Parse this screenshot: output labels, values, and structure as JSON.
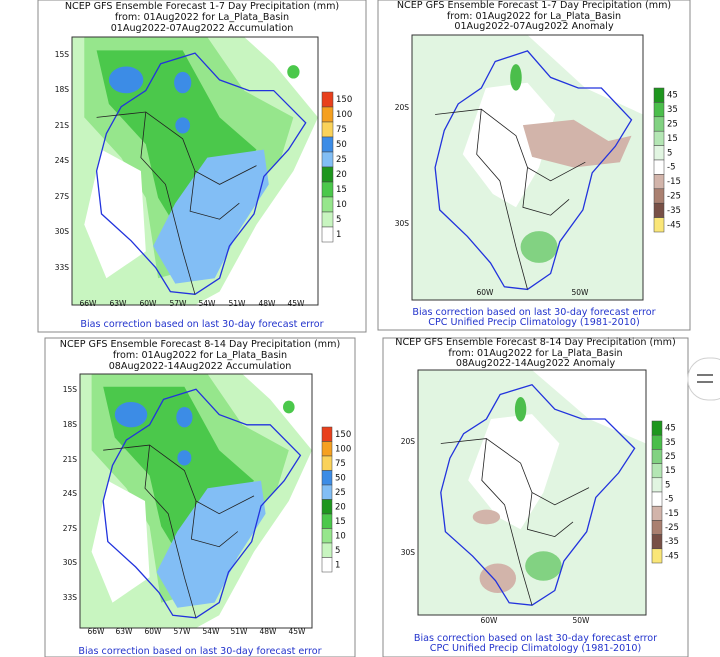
{
  "panels": [
    {
      "title": [
        "NCEP GFS Ensemble Forecast 1-7 Day Precipitation (mm)",
        "from: 01Aug2022   for La_Plata_Basin",
        "01Aug2022-07Aug2022 Accumulation"
      ],
      "lat_labels": [
        "15S",
        "18S",
        "21S",
        "24S",
        "27S",
        "30S",
        "33S"
      ],
      "lon_labels": [
        "66W",
        "63W",
        "60W",
        "57W",
        "54W",
        "51W",
        "48W",
        "45W"
      ],
      "legend": {
        "labels": [
          "150",
          "100",
          "75",
          "50",
          "25",
          "20",
          "15",
          "10",
          "5",
          "1"
        ],
        "colors": [
          "#e8401c",
          "#f5a020",
          "#fad25a",
          "#3c8ce6",
          "#82bef5",
          "#1e961e",
          "#4bc84b",
          "#96e68c",
          "#c8f5c0",
          "#ffffff"
        ]
      },
      "footer": [
        "Bias correction based on last 30-day forecast error"
      ]
    },
    {
      "title": [
        "NCEP GFS Ensemble Forecast 1-7 Day Precipitation (mm)",
        "from: 01Aug2022   for La_Plata_Basin",
        "01Aug2022-07Aug2022 Anomaly"
      ],
      "lat_labels": [
        "20S",
        "30S"
      ],
      "lon_labels": [
        "60W",
        "50W"
      ],
      "legend": {
        "labels": [
          "45",
          "35",
          "25",
          "15",
          "5",
          "-5",
          "-15",
          "-25",
          "-35",
          "-45"
        ],
        "colors": [
          "#1e961e",
          "#4bbe4b",
          "#82d282",
          "#b4e6b4",
          "#e1f5e1",
          "#ffffff",
          "#d2b4aa",
          "#aa8070",
          "#785046",
          "#fae678"
        ]
      },
      "footer": [
        "Bias correction based on last 30-day forecast error",
        "CPC Unified Precip Climatology (1981-2010)"
      ]
    },
    {
      "title": [
        "NCEP GFS Ensemble Forecast 8-14 Day Precipitation (mm)",
        "from: 01Aug2022   for La_Plata_Basin",
        "08Aug2022-14Aug2022 Accumulation"
      ],
      "lat_labels": [
        "15S",
        "18S",
        "21S",
        "24S",
        "27S",
        "30S",
        "33S"
      ],
      "lon_labels": [
        "66W",
        "63W",
        "60W",
        "57W",
        "54W",
        "51W",
        "48W",
        "45W"
      ],
      "legend": {
        "labels": [
          "150",
          "100",
          "75",
          "50",
          "25",
          "20",
          "15",
          "10",
          "5",
          "1"
        ],
        "colors": [
          "#e8401c",
          "#f5a020",
          "#fad25a",
          "#3c8ce6",
          "#82bef5",
          "#1e961e",
          "#4bc84b",
          "#96e68c",
          "#c8f5c0",
          "#ffffff"
        ]
      },
      "footer": [
        "Bias correction based on last 30-day forecast error"
      ]
    },
    {
      "title": [
        "NCEP GFS Ensemble Forecast 8-14 Day Precipitation (mm)",
        "from: 01Aug2022   for La_Plata_Basin",
        "08Aug2022-14Aug2022 Anomaly"
      ],
      "lat_labels": [
        "20S",
        "30S"
      ],
      "lon_labels": [
        "60W",
        "50W"
      ],
      "legend": {
        "labels": [
          "45",
          "35",
          "25",
          "15",
          "5",
          "-5",
          "-15",
          "-25",
          "-35",
          "-45"
        ],
        "colors": [
          "#1e961e",
          "#4bbe4b",
          "#82d282",
          "#b4e6b4",
          "#e1f5e1",
          "#ffffff",
          "#d2b4aa",
          "#aa8070",
          "#785046",
          "#fae678"
        ]
      },
      "footer": [
        "Bias correction based on last 30-day forecast error",
        "CPC Unified Precip Climatology (1981-2010)"
      ]
    }
  ]
}
